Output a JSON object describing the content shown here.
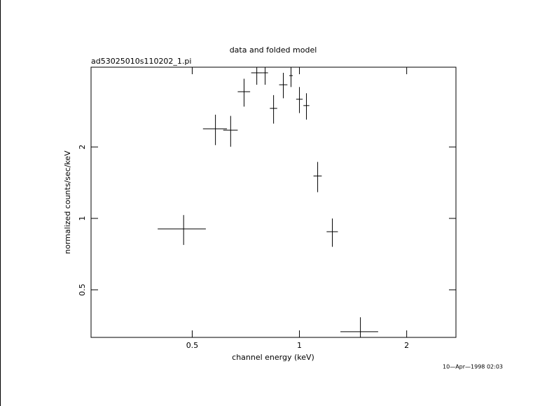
{
  "chart_data": {
    "type": "errorbar",
    "title": "data and folded model",
    "subtitle": "ad53025010s110202_1.pi",
    "x_label": "channel energy (keV)",
    "y_label": "normalized counts/sec/keV",
    "timestamp": "10—Apr—1998 02:03",
    "xscale": "log",
    "yscale": "log",
    "xlim": [
      0.26,
      2.75
    ],
    "ylim": [
      0.315,
      4.34
    ],
    "xticks": [
      0.5,
      1,
      2
    ],
    "yticks": [
      0.5,
      1,
      2
    ],
    "series": [
      {
        "color": "#000000",
        "x": [
          0.473,
          0.581,
          0.641,
          0.699,
          0.759,
          0.801,
          0.846,
          0.901,
          0.947,
          1.0,
          1.046,
          1.125,
          1.237,
          1.483
        ],
        "xerr": [
          0.073,
          0.045,
          0.03,
          0.028,
          0.027,
          0.015,
          0.02,
          0.024,
          0.011,
          0.021,
          0.02,
          0.03,
          0.045,
          0.18
        ],
        "values": [
          0.903,
          2.387,
          2.355,
          3.42,
          4.11,
          4.11,
          2.91,
          3.66,
          4.0,
          3.18,
          2.99,
          1.51,
          0.879,
          0.333
        ],
        "yerr": [
          0.13,
          0.35,
          0.35,
          0.46,
          0.45,
          0.45,
          0.4,
          0.45,
          0.42,
          0.4,
          0.38,
          0.22,
          0.12,
          0.05
        ]
      }
    ]
  }
}
